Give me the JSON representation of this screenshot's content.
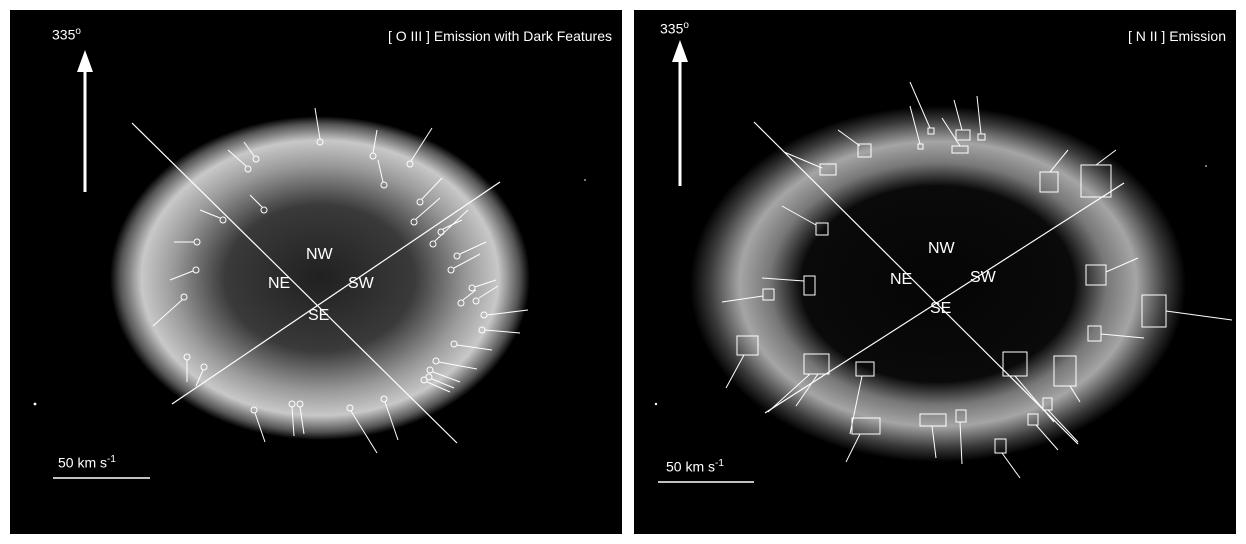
{
  "panels": [
    {
      "title": "[ O III ] Emission with Dark Features",
      "angle": "335",
      "angle_unit": "o",
      "quadrants": {
        "nw": "NW",
        "ne": "NE",
        "sw": "SW",
        "se": "SE"
      },
      "scale": {
        "text": "50 km s",
        "exp": "-1"
      }
    },
    {
      "title": "[ N II ] Emission",
      "angle": "335",
      "angle_unit": "o",
      "quadrants": {
        "nw": "NW",
        "ne": "NE",
        "sw": "SW",
        "se": "SE"
      },
      "scale": {
        "text": "50 km s",
        "exp": "-1"
      }
    }
  ]
}
